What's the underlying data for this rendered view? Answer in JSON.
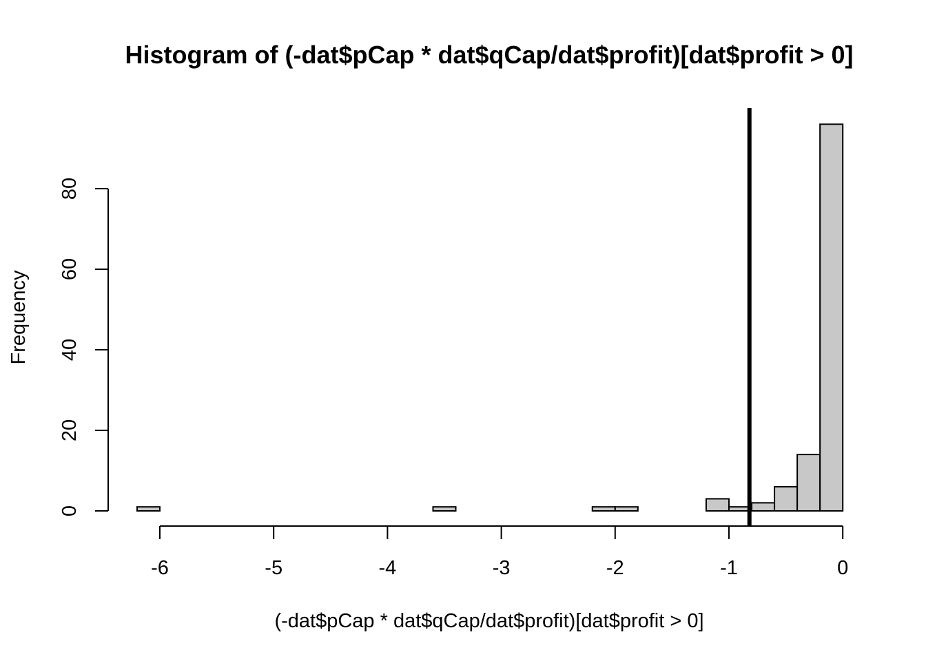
{
  "chart_data": {
    "type": "bar",
    "title": "Histogram of (-dat$pCap * dat$qCap/dat$profit)[dat$profit > 0]",
    "xlabel": "(-dat$pCap * dat$qCap/dat$profit)[dat$profit > 0]",
    "ylabel": "Frequency",
    "xlim": [
      -6.2,
      0
    ],
    "ylim": [
      0,
      96
    ],
    "x_ticks": [
      -6,
      -5,
      -4,
      -3,
      -2,
      -1,
      0
    ],
    "y_ticks": [
      0,
      20,
      40,
      60,
      80
    ],
    "bin_width": 0.2,
    "bins": [
      {
        "x0": -6.2,
        "x1": -6.0,
        "count": 1
      },
      {
        "x0": -6.0,
        "x1": -5.8,
        "count": 0
      },
      {
        "x0": -5.8,
        "x1": -5.6,
        "count": 0
      },
      {
        "x0": -5.6,
        "x1": -5.4,
        "count": 0
      },
      {
        "x0": -5.4,
        "x1": -5.2,
        "count": 0
      },
      {
        "x0": -5.2,
        "x1": -5.0,
        "count": 0
      },
      {
        "x0": -5.0,
        "x1": -4.8,
        "count": 0
      },
      {
        "x0": -4.8,
        "x1": -4.6,
        "count": 0
      },
      {
        "x0": -4.6,
        "x1": -4.4,
        "count": 0
      },
      {
        "x0": -4.4,
        "x1": -4.2,
        "count": 0
      },
      {
        "x0": -4.2,
        "x1": -4.0,
        "count": 0
      },
      {
        "x0": -4.0,
        "x1": -3.8,
        "count": 0
      },
      {
        "x0": -3.8,
        "x1": -3.6,
        "count": 0
      },
      {
        "x0": -3.6,
        "x1": -3.4,
        "count": 1
      },
      {
        "x0": -3.4,
        "x1": -3.2,
        "count": 0
      },
      {
        "x0": -3.2,
        "x1": -3.0,
        "count": 0
      },
      {
        "x0": -3.0,
        "x1": -2.8,
        "count": 0
      },
      {
        "x0": -2.8,
        "x1": -2.6,
        "count": 0
      },
      {
        "x0": -2.6,
        "x1": -2.4,
        "count": 0
      },
      {
        "x0": -2.4,
        "x1": -2.2,
        "count": 0
      },
      {
        "x0": -2.2,
        "x1": -2.0,
        "count": 1
      },
      {
        "x0": -2.0,
        "x1": -1.8,
        "count": 1
      },
      {
        "x0": -1.8,
        "x1": -1.6,
        "count": 0
      },
      {
        "x0": -1.6,
        "x1": -1.4,
        "count": 0
      },
      {
        "x0": -1.4,
        "x1": -1.2,
        "count": 0
      },
      {
        "x0": -1.2,
        "x1": -1.0,
        "count": 3
      },
      {
        "x0": -1.0,
        "x1": -0.8,
        "count": 1
      },
      {
        "x0": -0.8,
        "x1": -0.6,
        "count": 2
      },
      {
        "x0": -0.6,
        "x1": -0.4,
        "count": 6
      },
      {
        "x0": -0.4,
        "x1": -0.2,
        "count": 14
      },
      {
        "x0": -0.2,
        "x1": 0.0,
        "count": 96
      }
    ],
    "reference_line": {
      "x": -0.82,
      "orientation": "vertical"
    },
    "bar_color": "#c8c8c8",
    "grid": false
  }
}
